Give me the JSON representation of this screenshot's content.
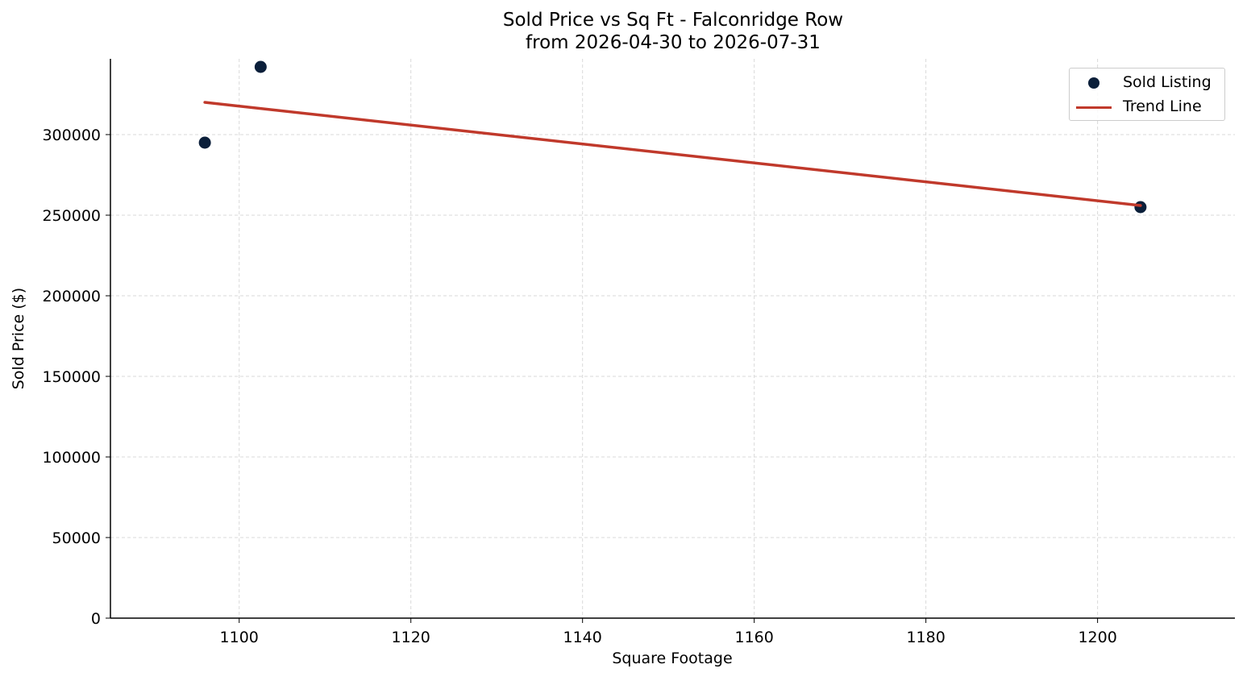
{
  "chart_data": {
    "type": "scatter",
    "title": "Sold Price vs Sq Ft - Falconridge Row",
    "subtitle": "from 2026-04-30 to 2026-07-31",
    "xlabel": "Square Footage",
    "ylabel": "Sold Price ($)",
    "xlim": [
      1085,
      1216
    ],
    "ylim": [
      0,
      347000
    ],
    "xticks": [
      1100,
      1120,
      1140,
      1160,
      1180,
      1200
    ],
    "yticks": [
      0,
      50000,
      100000,
      150000,
      200000,
      250000,
      300000
    ],
    "grid": true,
    "legend_position": "top-right",
    "series": [
      {
        "name": "Sold Listing",
        "kind": "scatter",
        "color": "#0b1f3a",
        "points": [
          {
            "x": 1096,
            "y": 295000
          },
          {
            "x": 1102.5,
            "y": 342000
          },
          {
            "x": 1205,
            "y": 255000
          }
        ]
      },
      {
        "name": "Trend Line",
        "kind": "line",
        "color": "#c0392b",
        "points": [
          {
            "x": 1096,
            "y": 320000
          },
          {
            "x": 1205,
            "y": 256000
          }
        ]
      }
    ]
  }
}
